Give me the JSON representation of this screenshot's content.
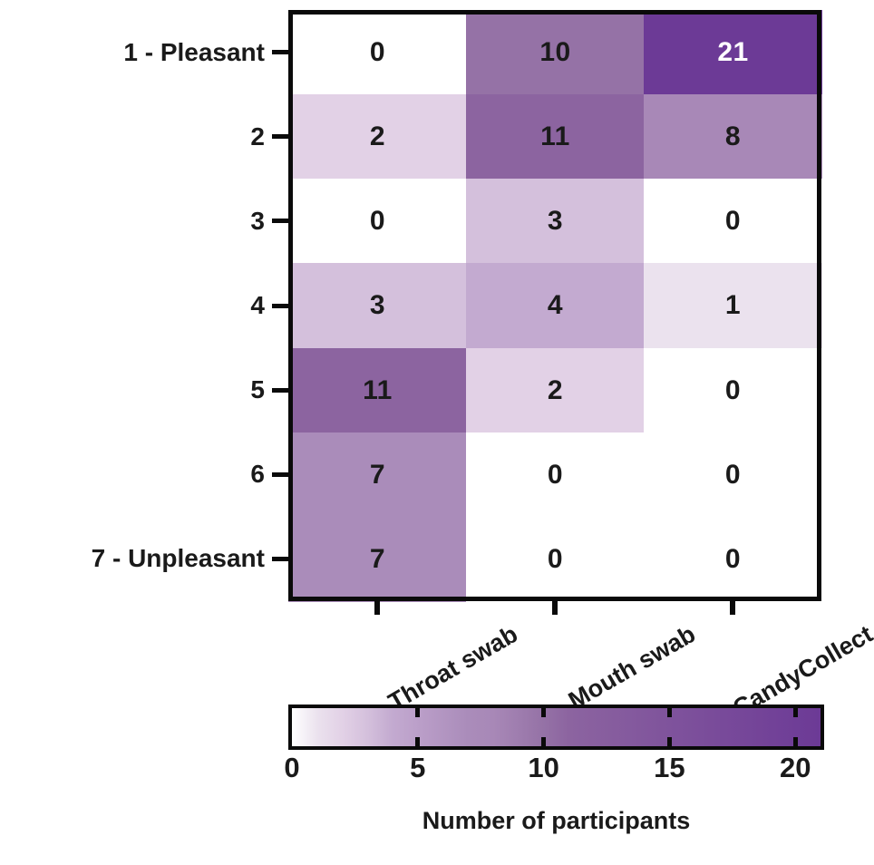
{
  "chart_data": {
    "type": "heatmap",
    "title": "",
    "rows": [
      "1 - Pleasant",
      "2",
      "3",
      "4",
      "5",
      "6",
      "7 - Unpleasant"
    ],
    "columns": [
      "Throat swab",
      "Mouth swab",
      "CandyCollect"
    ],
    "values": [
      [
        0,
        10,
        21
      ],
      [
        2,
        11,
        8
      ],
      [
        0,
        3,
        0
      ],
      [
        3,
        4,
        1
      ],
      [
        11,
        2,
        0
      ],
      [
        7,
        0,
        0
      ],
      [
        7,
        0,
        0
      ]
    ],
    "value_min": 0,
    "value_max": 21,
    "grid": false,
    "legend_position": "bottom",
    "colorbar": {
      "label": "Number of participants",
      "tick_labels": [
        "0",
        "5",
        "10",
        "15",
        "20"
      ],
      "tick_values": [
        0,
        5,
        10,
        15,
        20
      ]
    },
    "color_scale": [
      {
        "value": 0,
        "color": "#ffffff"
      },
      {
        "value": 1,
        "color": "#ebe2ee"
      },
      {
        "value": 2,
        "color": "#e2d1e6"
      },
      {
        "value": 3,
        "color": "#d4c0dc"
      },
      {
        "value": 4,
        "color": "#c3aad0"
      },
      {
        "value": 5,
        "color": "#bb9fc9"
      },
      {
        "value": 7,
        "color": "#aa8cba"
      },
      {
        "value": 8,
        "color": "#a888b7"
      },
      {
        "value": 10,
        "color": "#9572a6"
      },
      {
        "value": 11,
        "color": "#8c64a0"
      },
      {
        "value": 15,
        "color": "#7f539c"
      },
      {
        "value": 21,
        "color": "#6c3a96"
      }
    ],
    "axis_color": "#0a0a0a",
    "cell_text_color": "#1a1a1a",
    "high_value_text_color": "#ffffff",
    "high_value_text_threshold": 18
  }
}
